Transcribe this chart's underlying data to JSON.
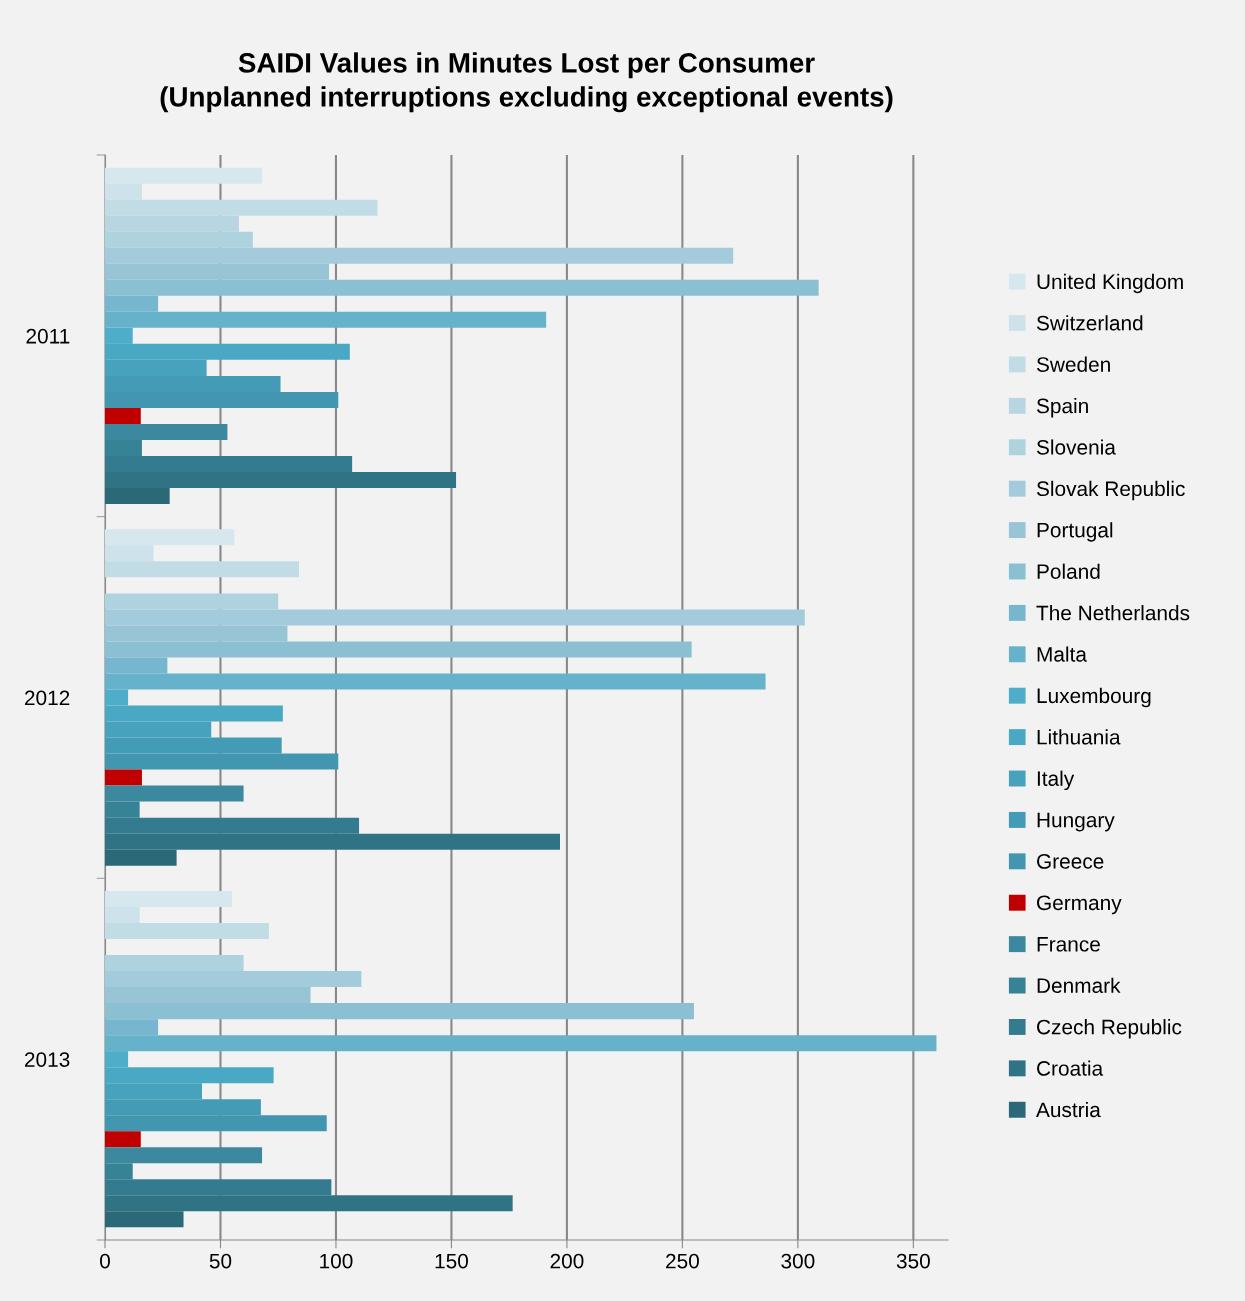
{
  "chart_data": {
    "type": "bar",
    "orientation": "horizontal",
    "title": "SAIDI Values in Minutes Lost per Consumer\n(Unplanned interruptions excluding exceptional events)",
    "categories": [
      "2011",
      "2012",
      "2013"
    ],
    "series": [
      {
        "name": "United Kingdom",
        "color": "#d6e7ee",
        "values": [
          68,
          56,
          55
        ]
      },
      {
        "name": "Switzerland",
        "color": "#cde2ea",
        "values": [
          16,
          21,
          15
        ]
      },
      {
        "name": "Sweden",
        "color": "#c2dce5",
        "values": [
          118,
          84,
          71
        ]
      },
      {
        "name": "Spain",
        "color": "#b8d6e1",
        "values": [
          58,
          null,
          null
        ]
      },
      {
        "name": "Slovenia",
        "color": "#aed2de",
        "values": [
          64,
          75,
          60
        ]
      },
      {
        "name": "Slovak Republic",
        "color": "#a3cbdb",
        "values": [
          272,
          303,
          111
        ]
      },
      {
        "name": "Portugal",
        "color": "#97c5d6",
        "values": [
          97,
          79,
          89
        ]
      },
      {
        "name": "Poland",
        "color": "#8ac0d2",
        "values": [
          309,
          254,
          255
        ]
      },
      {
        "name": "The Netherlands",
        "color": "#76b7cf",
        "values": [
          23,
          27,
          23
        ]
      },
      {
        "name": "Malta",
        "color": "#67b2cb",
        "values": [
          191,
          286,
          360
        ]
      },
      {
        "name": "Luxembourg",
        "color": "#4eadc8",
        "values": [
          12,
          10,
          10
        ]
      },
      {
        "name": "Lithuania",
        "color": "#49a8c3",
        "values": [
          106,
          77,
          73
        ]
      },
      {
        "name": "Italy",
        "color": "#46a2bd",
        "values": [
          44,
          46,
          42
        ]
      },
      {
        "name": "Hungary",
        "color": "#439bb6",
        "values": [
          76,
          76.5,
          67.5
        ]
      },
      {
        "name": "Greece",
        "color": "#4296b0",
        "values": [
          101,
          101,
          96
        ]
      },
      {
        "name": "Germany",
        "color": "#c00000",
        "values": [
          15.5,
          16,
          15.5
        ]
      },
      {
        "name": "France",
        "color": "#3b889f",
        "values": [
          53,
          60,
          68
        ]
      },
      {
        "name": "Denmark",
        "color": "#378396",
        "values": [
          16,
          15,
          12
        ]
      },
      {
        "name": "Czech Republic",
        "color": "#347b8f",
        "values": [
          107,
          110,
          98
        ]
      },
      {
        "name": "Croatia",
        "color": "#307384",
        "values": [
          152,
          197,
          176.5
        ]
      },
      {
        "name": "Austria",
        "color": "#2b6878",
        "values": [
          28,
          31,
          34
        ]
      }
    ],
    "xlim": [
      0,
      365
    ],
    "xticks": [
      0,
      50,
      100,
      150,
      200,
      250,
      300,
      350
    ],
    "grid": "x",
    "legend": "right"
  }
}
